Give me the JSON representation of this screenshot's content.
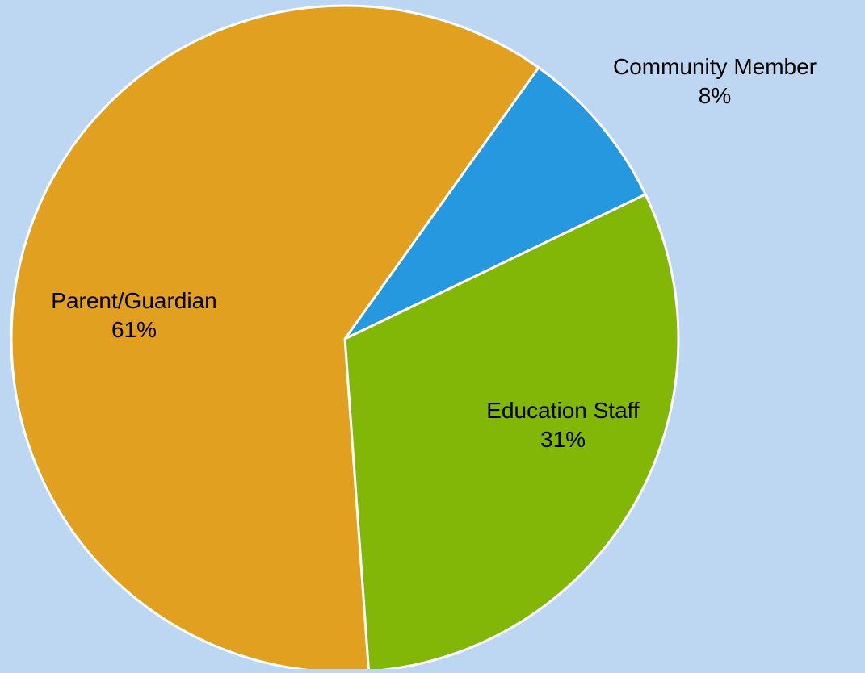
{
  "chart_data": {
    "type": "pie",
    "title": "",
    "slices": [
      {
        "label": "Community Member",
        "value_label": "8%",
        "value": 8,
        "color": "#2698E0"
      },
      {
        "label": "Education Staff",
        "value_label": "31%",
        "value": 31,
        "color": "#82B707"
      },
      {
        "label": "Parent/Guardian",
        "value_label": "61%",
        "value": 61,
        "color": "#E1A020"
      }
    ],
    "background_color": "#BDD7F3",
    "slice_border_color": "#FFFFFF",
    "start_angle_note": "first slice begins at upper-right, clockwise order"
  }
}
